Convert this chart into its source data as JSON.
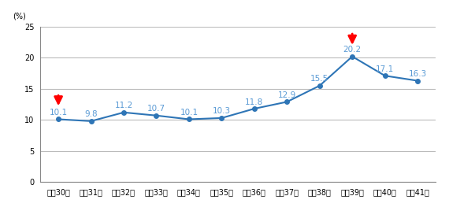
{
  "categories": [
    "昭和30年",
    "昭和31年",
    "昭和32年",
    "昭和33年",
    "昭和34年",
    "昭和35年",
    "昭和36年",
    "昭和37年",
    "昭和38年",
    "昭和39年",
    "昭和40年",
    "昭和41年"
  ],
  "values": [
    10.1,
    9.8,
    11.2,
    10.7,
    10.1,
    10.3,
    11.8,
    12.9,
    15.5,
    20.2,
    17.1,
    16.3
  ],
  "line_color": "#2E75B6",
  "marker_color": "#2E75B6",
  "arrow_color": "#FF0000",
  "label_color": "#5B9BD5",
  "ylabel": "(%)",
  "ylim": [
    0,
    25
  ],
  "yticks": [
    0,
    5,
    10,
    15,
    20,
    25
  ],
  "grid_color": "#BBBBBB",
  "bg_color": "#FFFFFF",
  "arrow_indices": [
    0,
    9
  ],
  "label_fontsize": 7.5,
  "tick_fontsize": 7.0
}
